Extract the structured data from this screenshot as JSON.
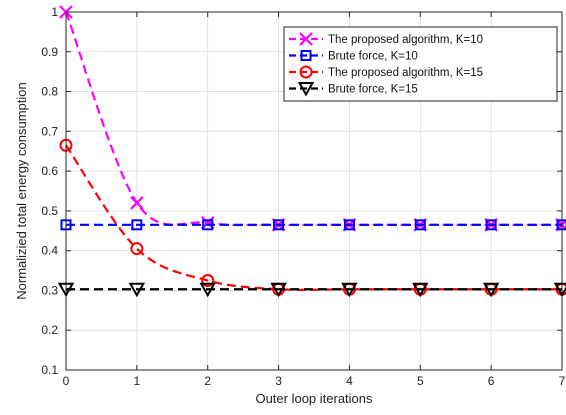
{
  "chart_data": {
    "type": "line",
    "xlabel": "Outer loop iterations",
    "ylabel": "Normalizied total energy consumption",
    "xlim": [
      0,
      7
    ],
    "ylim": [
      0.1,
      1
    ],
    "xticks": [
      "0",
      "1",
      "2",
      "3",
      "4",
      "5",
      "6",
      "7"
    ],
    "yticks": [
      "0.1",
      "0.2",
      "0.3",
      "0.4",
      "0.5",
      "0.6",
      "0.7",
      "0.8",
      "0.9",
      "1"
    ],
    "grid": true,
    "legend_position": "top-right",
    "series": [
      {
        "name": "The proposed algorithm, K=10",
        "color": "#ff00ff",
        "marker": "x",
        "style": "dashed-smooth",
        "x": [
          0,
          1,
          2,
          3,
          4,
          5,
          6,
          7
        ],
        "y": [
          1.0,
          0.52,
          0.47,
          0.465,
          0.465,
          0.465,
          0.465,
          0.465
        ]
      },
      {
        "name": "Brute force, K=10",
        "color": "#0000ff",
        "marker": "square",
        "style": "dashed",
        "x": [
          0,
          1,
          2,
          3,
          4,
          5,
          6,
          7
        ],
        "y": [
          0.465,
          0.465,
          0.465,
          0.465,
          0.465,
          0.465,
          0.465,
          0.465
        ]
      },
      {
        "name": "The proposed algorithm, K=15",
        "color": "#ff0000",
        "marker": "circle",
        "style": "dashed-smooth",
        "x": [
          0,
          1,
          2,
          3,
          4,
          5,
          6,
          7
        ],
        "y": [
          0.665,
          0.405,
          0.325,
          0.303,
          0.303,
          0.303,
          0.303,
          0.303
        ]
      },
      {
        "name": "Brute force, K=15",
        "color": "#000000",
        "marker": "triangle-down",
        "style": "dashed",
        "x": [
          0,
          1,
          2,
          3,
          4,
          5,
          6,
          7
        ],
        "y": [
          0.303,
          0.303,
          0.303,
          0.303,
          0.303,
          0.303,
          0.303,
          0.303
        ]
      }
    ]
  }
}
